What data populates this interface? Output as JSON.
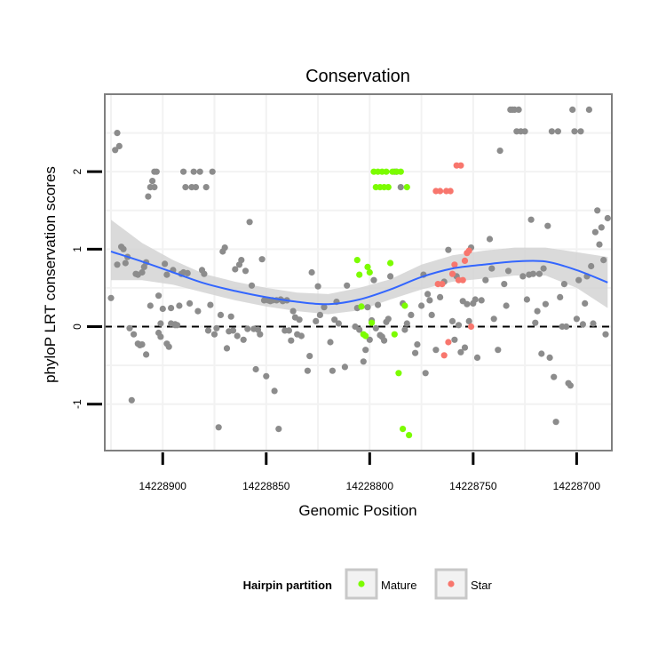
{
  "chart_data": {
    "type": "scatter",
    "title": "Conservation",
    "xlabel": "Genomic Position",
    "ylabel": "phyloP LRT conservation scores",
    "x_reversed": true,
    "xlim": [
      14228928,
      14228683
    ],
    "ylim": [
      -1.6,
      3.0
    ],
    "x_ticks": [
      14228900,
      14228850,
      14228800,
      14228750,
      14228700
    ],
    "x_tick_labels": [
      "14228900",
      "14228850",
      "14228800",
      "14228750",
      "14228700"
    ],
    "y_ticks": [
      -1,
      0,
      1,
      2
    ],
    "y_tick_labels": [
      "-1",
      "0",
      "1",
      "2"
    ],
    "reference_line": {
      "y": 0,
      "style": "dashed",
      "color": "#000000"
    },
    "colors": {
      "background": "#ffffff",
      "panel_border": "#7f7f7f",
      "gridline": "#f2f2f2",
      "other": "#8c8c8c",
      "mature": "#7cfc00",
      "star": "#f8766d",
      "smooth_line": "#3366ff",
      "ribbon": "#d3d3d3"
    },
    "legend": {
      "title": "Hairpin partition",
      "position": "bottom",
      "entries": [
        {
          "label": "Mature",
          "color": "#7cfc00"
        },
        {
          "label": "Star",
          "color": "#f8766d"
        }
      ]
    },
    "series": [
      {
        "name": "Other",
        "color": "#8c8c8c",
        "points": [
          [
            14228925,
            0.37
          ],
          [
            14228923,
            2.28
          ],
          [
            14228922,
            2.5
          ],
          [
            14228921,
            2.33
          ],
          [
            14228922,
            0.8
          ],
          [
            14228920,
            1.03
          ],
          [
            14228919,
            1.0
          ],
          [
            14228917,
            0.9
          ],
          [
            14228918,
            0.82
          ],
          [
            14228916,
            -0.02
          ],
          [
            14228915,
            -0.95
          ],
          [
            14228914,
            -0.1
          ],
          [
            14228913,
            0.68
          ],
          [
            14228912,
            0.67
          ],
          [
            14228912,
            -0.22
          ],
          [
            14228911,
            -0.24
          ],
          [
            14228910,
            0.7
          ],
          [
            14228910,
            -0.23
          ],
          [
            14228909,
            0.77
          ],
          [
            14228908,
            -0.36
          ],
          [
            14228908,
            0.83
          ],
          [
            14228907,
            1.68
          ],
          [
            14228906,
            0.27
          ],
          [
            14228906,
            1.8
          ],
          [
            14228905,
            1.88
          ],
          [
            14228904,
            2.0
          ],
          [
            14228904,
            1.8
          ],
          [
            14228903,
            2.0
          ],
          [
            14228902,
            -0.08
          ],
          [
            14228902,
            0.4
          ],
          [
            14228901,
            0.04
          ],
          [
            14228901,
            -0.13
          ],
          [
            14228900,
            0.23
          ],
          [
            14228899,
            0.81
          ],
          [
            14228898,
            -0.22
          ],
          [
            14228898,
            0.67
          ],
          [
            14228897,
            -0.26
          ],
          [
            14228896,
            0.24
          ],
          [
            14228896,
            0.04
          ],
          [
            14228895,
            0.73
          ],
          [
            14228894,
            0.03
          ],
          [
            14228894,
            0.02
          ],
          [
            14228893,
            0.02
          ],
          [
            14228892,
            0.27
          ],
          [
            14228891,
            0.68
          ],
          [
            14228890,
            0.7
          ],
          [
            14228890,
            2.0
          ],
          [
            14228889,
            1.8
          ],
          [
            14228888,
            0.69
          ],
          [
            14228887,
            0.3
          ],
          [
            14228886,
            1.8
          ],
          [
            14228885,
            2.0
          ],
          [
            14228884,
            1.8
          ],
          [
            14228883,
            0.2
          ],
          [
            14228882,
            2.0
          ],
          [
            14228881,
            0.73
          ],
          [
            14228880,
            0.68
          ],
          [
            14228879,
            1.8
          ],
          [
            14228878,
            -0.05
          ],
          [
            14228877,
            0.28
          ],
          [
            14228876,
            2.0
          ],
          [
            14228875,
            -0.1
          ],
          [
            14228874,
            -0.02
          ],
          [
            14228873,
            -1.3
          ],
          [
            14228872,
            0.15
          ],
          [
            14228871,
            0.97
          ],
          [
            14228870,
            1.02
          ],
          [
            14228869,
            -0.28
          ],
          [
            14228868,
            -0.06
          ],
          [
            14228867,
            0.13
          ],
          [
            14228866,
            -0.05
          ],
          [
            14228865,
            0.74
          ],
          [
            14228864,
            -0.12
          ],
          [
            14228863,
            0.8
          ],
          [
            14228862,
            0.86
          ],
          [
            14228861,
            -0.17
          ],
          [
            14228860,
            0.72
          ],
          [
            14228859,
            -0.03
          ],
          [
            14228858,
            1.35
          ],
          [
            14228857,
            0.53
          ],
          [
            14228856,
            -0.03
          ],
          [
            14228855,
            -0.55
          ],
          [
            14228854,
            -0.04
          ],
          [
            14228853,
            -0.1
          ],
          [
            14228852,
            0.87
          ],
          [
            14228851,
            0.34
          ],
          [
            14228850,
            -0.64
          ],
          [
            14228849,
            0.34
          ],
          [
            14228848,
            0.33
          ],
          [
            14228847,
            0.34
          ],
          [
            14228846,
            -0.83
          ],
          [
            14228845,
            0.34
          ],
          [
            14228844,
            -1.32
          ],
          [
            14228843,
            0.35
          ],
          [
            14228842,
            0.33
          ],
          [
            14228841,
            -0.05
          ],
          [
            14228840,
            0.34
          ],
          [
            14228839,
            -0.05
          ],
          [
            14228838,
            -0.18
          ],
          [
            14228837,
            0.2
          ],
          [
            14228836,
            0.12
          ],
          [
            14228835,
            -0.1
          ],
          [
            14228834,
            0.09
          ],
          [
            14228833,
            -0.12
          ],
          [
            14228830,
            -0.57
          ],
          [
            14228829,
            -0.38
          ],
          [
            14228828,
            0.7
          ],
          [
            14228826,
            0.07
          ],
          [
            14228825,
            0.52
          ],
          [
            14228824,
            0.15
          ],
          [
            14228822,
            0.25
          ],
          [
            14228819,
            -0.2
          ],
          [
            14228818,
            -0.57
          ],
          [
            14228817,
            0.09
          ],
          [
            14228816,
            0.32
          ],
          [
            14228815,
            0.04
          ],
          [
            14228812,
            -0.52
          ],
          [
            14228811,
            0.53
          ],
          [
            14228807,
            0.0
          ],
          [
            14228806,
            0.24
          ],
          [
            14228805,
            -0.04
          ],
          [
            14228803,
            -0.45
          ],
          [
            14228802,
            -0.3
          ],
          [
            14228801,
            0.25
          ],
          [
            14228800,
            -0.17
          ],
          [
            14228799,
            0.08
          ],
          [
            14228798,
            0.6
          ],
          [
            14228797,
            -0.02
          ],
          [
            14228796,
            0.28
          ],
          [
            14228795,
            -0.11
          ],
          [
            14228794,
            -0.13
          ],
          [
            14228793,
            -0.18
          ],
          [
            14228792,
            0.06
          ],
          [
            14228791,
            0.1
          ],
          [
            14228790,
            0.65
          ],
          [
            14228788,
            2.0
          ],
          [
            14228787,
            2.0
          ],
          [
            14228785,
            1.8
          ],
          [
            14228784,
            0.3
          ],
          [
            14228783,
            -0.04
          ],
          [
            14228782,
            0.04
          ],
          [
            14228780,
            0.15
          ],
          [
            14228778,
            -0.34
          ],
          [
            14228777,
            -0.23
          ],
          [
            14228775,
            0.27
          ],
          [
            14228774,
            0.67
          ],
          [
            14228773,
            -0.6
          ],
          [
            14228772,
            0.42
          ],
          [
            14228771,
            0.34
          ],
          [
            14228770,
            0.15
          ],
          [
            14228768,
            -0.3
          ],
          [
            14228766,
            0.38
          ],
          [
            14228764,
            0.58
          ],
          [
            14228762,
            0.99
          ],
          [
            14228760,
            0.07
          ],
          [
            14228759,
            -0.17
          ],
          [
            14228758,
            0.65
          ],
          [
            14228757,
            0.02
          ],
          [
            14228756,
            -0.33
          ],
          [
            14228755,
            0.33
          ],
          [
            14228754,
            -0.27
          ],
          [
            14228753,
            0.29
          ],
          [
            14228752,
            0.07
          ],
          [
            14228751,
            1.02
          ],
          [
            14228750,
            0.3
          ],
          [
            14228749,
            0.35
          ],
          [
            14228748,
            -0.4
          ],
          [
            14228746,
            0.34
          ],
          [
            14228744,
            0.6
          ],
          [
            14228742,
            1.13
          ],
          [
            14228741,
            0.75
          ],
          [
            14228740,
            0.1
          ],
          [
            14228738,
            -0.3
          ],
          [
            14228737,
            2.27
          ],
          [
            14228735,
            0.55
          ],
          [
            14228734,
            0.27
          ],
          [
            14228733,
            0.72
          ],
          [
            14228732,
            2.8
          ],
          [
            14228731,
            2.8
          ],
          [
            14228730,
            2.8
          ],
          [
            14228729,
            2.52
          ],
          [
            14228728,
            2.8
          ],
          [
            14228727,
            2.52
          ],
          [
            14228726,
            0.65
          ],
          [
            14228725,
            2.52
          ],
          [
            14228724,
            0.35
          ],
          [
            14228723,
            0.67
          ],
          [
            14228722,
            1.38
          ],
          [
            14228721,
            0.68
          ],
          [
            14228720,
            0.05
          ],
          [
            14228719,
            0.2
          ],
          [
            14228718,
            0.68
          ],
          [
            14228717,
            -0.35
          ],
          [
            14228716,
            0.75
          ],
          [
            14228715,
            0.29
          ],
          [
            14228714,
            1.3
          ],
          [
            14228713,
            -0.4
          ],
          [
            14228712,
            2.52
          ],
          [
            14228711,
            -0.65
          ],
          [
            14228710,
            -1.23
          ],
          [
            14228709,
            2.52
          ],
          [
            14228708,
            0.38
          ],
          [
            14228707,
            0.0
          ],
          [
            14228706,
            0.55
          ],
          [
            14228705,
            0.0
          ],
          [
            14228704,
            -0.73
          ],
          [
            14228703,
            -0.76
          ],
          [
            14228702,
            2.8
          ],
          [
            14228701,
            2.52
          ],
          [
            14228700,
            0.1
          ],
          [
            14228699,
            0.6
          ],
          [
            14228698,
            2.52
          ],
          [
            14228697,
            0.03
          ],
          [
            14228696,
            0.3
          ],
          [
            14228695,
            0.65
          ],
          [
            14228694,
            2.8
          ],
          [
            14228693,
            0.78
          ],
          [
            14228692,
            0.04
          ],
          [
            14228691,
            1.22
          ],
          [
            14228690,
            1.5
          ],
          [
            14228689,
            1.06
          ],
          [
            14228688,
            1.28
          ],
          [
            14228687,
            0.86
          ],
          [
            14228686,
            -0.1
          ],
          [
            14228685,
            1.4
          ]
        ]
      },
      {
        "name": "Mature",
        "color": "#7cfc00",
        "points": [
          [
            14228806,
            0.86
          ],
          [
            14228805,
            0.67
          ],
          [
            14228804,
            0.26
          ],
          [
            14228803,
            -0.1
          ],
          [
            14228802,
            -0.12
          ],
          [
            14228801,
            0.77
          ],
          [
            14228800,
            0.7
          ],
          [
            14228799,
            0.05
          ],
          [
            14228798,
            2.0
          ],
          [
            14228797,
            1.8
          ],
          [
            14228796,
            2.0
          ],
          [
            14228795,
            1.8
          ],
          [
            14228794,
            2.0
          ],
          [
            14228793,
            1.8
          ],
          [
            14228792,
            2.0
          ],
          [
            14228791,
            1.8
          ],
          [
            14228790,
            0.82
          ],
          [
            14228789,
            2.0
          ],
          [
            14228788,
            -0.1
          ],
          [
            14228787,
            2.0
          ],
          [
            14228786,
            -0.6
          ],
          [
            14228785,
            2.0
          ],
          [
            14228784,
            -1.32
          ],
          [
            14228783,
            0.27
          ],
          [
            14228782,
            1.8
          ],
          [
            14228781,
            -1.4
          ]
        ]
      },
      {
        "name": "Star",
        "color": "#f8766d",
        "points": [
          [
            14228768,
            1.75
          ],
          [
            14228767,
            0.55
          ],
          [
            14228766,
            1.75
          ],
          [
            14228765,
            0.55
          ],
          [
            14228764,
            -0.37
          ],
          [
            14228763,
            1.75
          ],
          [
            14228762,
            -0.2
          ],
          [
            14228761,
            1.75
          ],
          [
            14228760,
            0.68
          ],
          [
            14228759,
            0.8
          ],
          [
            14228758,
            2.08
          ],
          [
            14228757,
            0.6
          ],
          [
            14228756,
            2.08
          ],
          [
            14228755,
            0.6
          ],
          [
            14228754,
            0.85
          ],
          [
            14228753,
            0.95
          ],
          [
            14228752,
            0.98
          ],
          [
            14228751,
            0.0
          ]
        ]
      }
    ],
    "smooth_fit": {
      "method": "loess",
      "x": [
        14228925,
        14228910,
        14228895,
        14228880,
        14228865,
        14228850,
        14228835,
        14228820,
        14228805,
        14228790,
        14228775,
        14228760,
        14228745,
        14228730,
        14228715,
        14228700,
        14228685
      ],
      "y": [
        0.97,
        0.84,
        0.7,
        0.56,
        0.46,
        0.38,
        0.32,
        0.29,
        0.35,
        0.48,
        0.64,
        0.75,
        0.8,
        0.84,
        0.84,
        0.73,
        0.57
      ],
      "ymin": [
        0.6,
        0.6,
        0.54,
        0.44,
        0.34,
        0.26,
        0.2,
        0.16,
        0.21,
        0.35,
        0.48,
        0.58,
        0.62,
        0.66,
        0.66,
        0.5,
        0.24
      ],
      "ymax": [
        1.38,
        1.08,
        0.86,
        0.68,
        0.58,
        0.5,
        0.44,
        0.42,
        0.5,
        0.61,
        0.8,
        0.92,
        0.98,
        1.02,
        1.02,
        0.96,
        0.9
      ]
    }
  }
}
